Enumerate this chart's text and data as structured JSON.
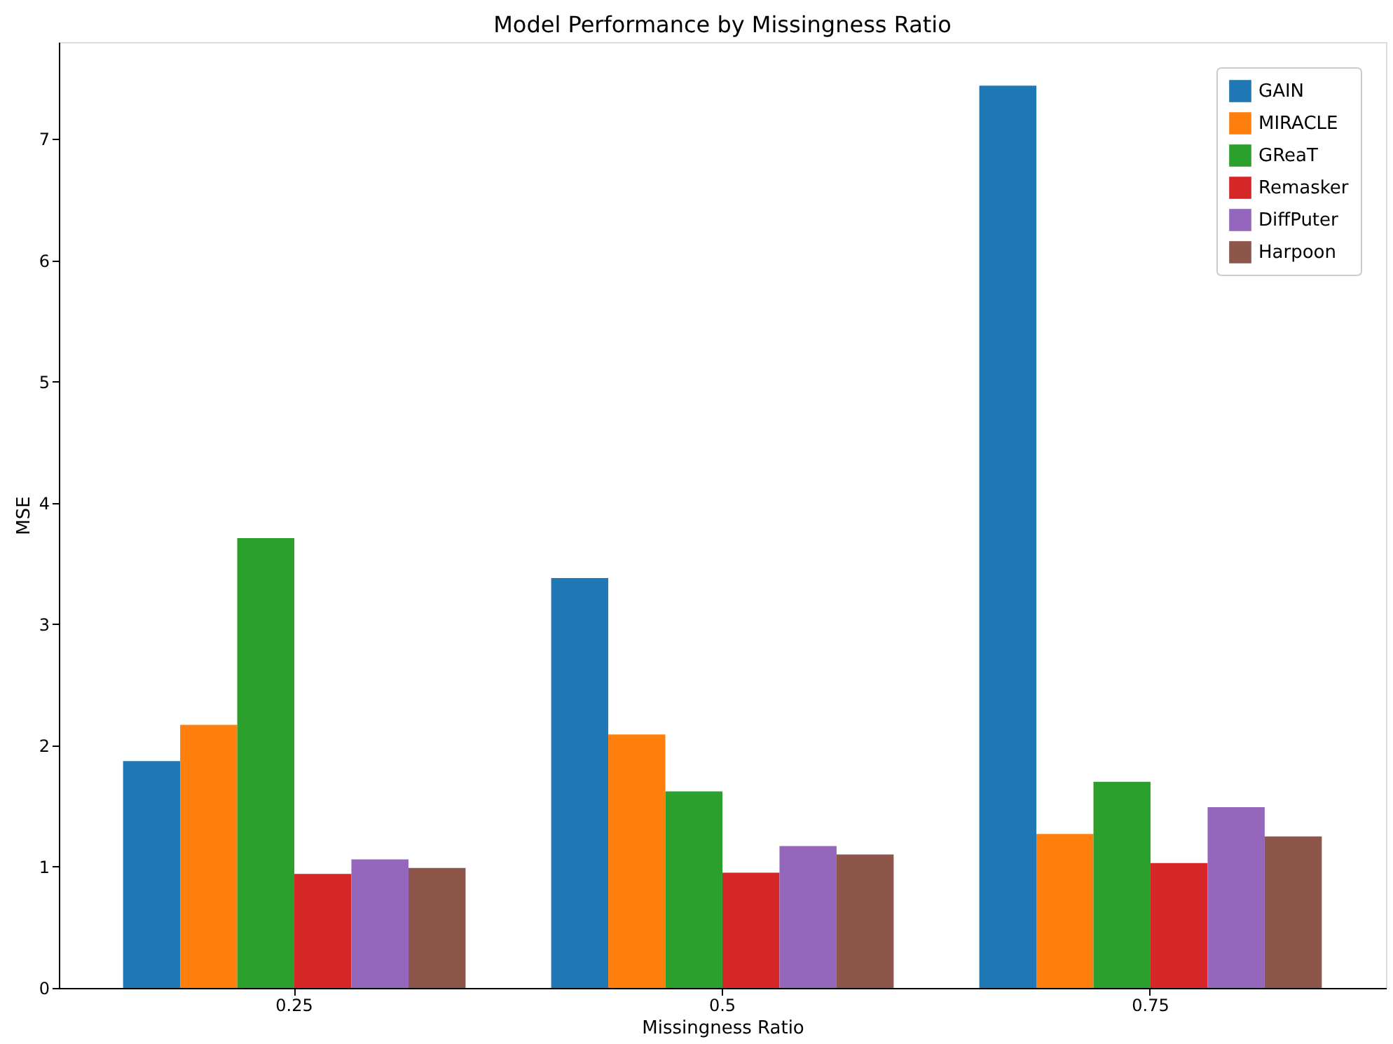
{
  "chart_data": {
    "type": "bar",
    "title": "Model Performance by Missingness Ratio",
    "xlabel": "Missingness Ratio",
    "ylabel": "MSE",
    "categories": [
      "0.25",
      "0.5",
      "0.75"
    ],
    "series": [
      {
        "name": "GAIN",
        "color": "#1f77b4",
        "values": [
          1.87,
          3.38,
          7.44
        ]
      },
      {
        "name": "MIRACLE",
        "color": "#ff7f0e",
        "values": [
          2.17,
          2.09,
          1.27
        ]
      },
      {
        "name": "GReaT",
        "color": "#2ca02c",
        "values": [
          3.71,
          1.62,
          1.7
        ]
      },
      {
        "name": "Remasker",
        "color": "#d62728",
        "values": [
          0.94,
          0.95,
          1.03
        ]
      },
      {
        "name": "DiffPuter",
        "color": "#9467bd",
        "values": [
          1.06,
          1.17,
          1.49
        ]
      },
      {
        "name": "Harpoon",
        "color": "#8c564b",
        "values": [
          0.99,
          1.1,
          1.25
        ]
      }
    ],
    "ylim": [
      0,
      7.8
    ],
    "yticks": [
      0,
      1,
      2,
      3,
      4,
      5,
      6,
      7
    ],
    "grid": false,
    "legend": "top right"
  }
}
